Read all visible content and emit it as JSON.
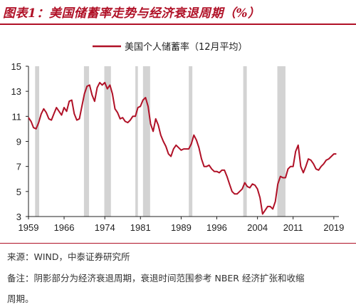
{
  "header": {
    "title": "图表1：美国储蓄率走势与经济衰退周期（%）"
  },
  "footer": {
    "source": "来源：WIND，中泰证券研究所",
    "note_line1": "备注：阴影部分为经济衰退周期，衰退时间范围参考 NBER 经济扩张和收缩",
    "note_line2": "周期。"
  },
  "colors": {
    "title": "#b01127",
    "series": "#b01127",
    "recession": "#d3d3d3"
  },
  "chart_data": {
    "type": "line",
    "title": "",
    "xlabel": "",
    "ylabel": "",
    "xlim": [
      1959,
      2020
    ],
    "ylim": [
      3,
      15
    ],
    "xticks": [
      "1959",
      "1966",
      "1974",
      "1981",
      "1989",
      "1996",
      "2004",
      "2011",
      "2019"
    ],
    "yticks": [
      "3",
      "5",
      "7",
      "9",
      "11",
      "13",
      "15"
    ],
    "legend_position": "top-center",
    "recessions": [
      [
        1960.3,
        1961.1
      ],
      [
        1969.9,
        1970.9
      ],
      [
        1973.9,
        1975.2
      ],
      [
        1980.0,
        1980.5
      ],
      [
        1981.5,
        1982.9
      ],
      [
        1990.5,
        1991.2
      ],
      [
        2001.2,
        2001.9
      ],
      [
        2007.9,
        2009.5
      ]
    ],
    "series": [
      {
        "name": "美国个人储蓄率（12月平均）",
        "x": [
          1959.0,
          1959.5,
          1960.0,
          1960.5,
          1961.0,
          1961.5,
          1962.0,
          1962.5,
          1963.0,
          1963.5,
          1964.0,
          1964.5,
          1965.0,
          1965.5,
          1966.0,
          1966.5,
          1967.0,
          1967.5,
          1968.0,
          1968.5,
          1969.0,
          1969.5,
          1970.0,
          1970.5,
          1971.0,
          1971.5,
          1972.0,
          1972.5,
          1973.0,
          1973.5,
          1974.0,
          1974.5,
          1975.0,
          1975.5,
          1976.0,
          1976.5,
          1977.0,
          1977.5,
          1978.0,
          1978.5,
          1979.0,
          1979.5,
          1980.0,
          1980.5,
          1981.0,
          1981.5,
          1982.0,
          1982.5,
          1983.0,
          1983.5,
          1984.0,
          1984.5,
          1985.0,
          1985.5,
          1986.0,
          1986.5,
          1987.0,
          1987.5,
          1988.0,
          1988.5,
          1989.0,
          1989.5,
          1990.0,
          1990.5,
          1991.0,
          1991.5,
          1992.0,
          1992.5,
          1993.0,
          1993.5,
          1994.0,
          1994.5,
          1995.0,
          1995.5,
          1996.0,
          1996.5,
          1997.0,
          1997.5,
          1998.0,
          1998.5,
          1999.0,
          1999.5,
          2000.0,
          2000.5,
          2001.0,
          2001.5,
          2002.0,
          2002.5,
          2003.0,
          2003.5,
          2004.0,
          2004.5,
          2005.0,
          2005.5,
          2006.0,
          2006.5,
          2007.0,
          2007.5,
          2008.0,
          2008.5,
          2009.0,
          2009.5,
          2010.0,
          2010.5,
          2011.0,
          2011.5,
          2012.0,
          2012.5,
          2013.0,
          2013.5,
          2014.0,
          2014.5,
          2015.0,
          2015.5,
          2016.0,
          2016.5,
          2017.0,
          2017.5,
          2018.0,
          2018.5,
          2019.0,
          2019.5
        ],
        "values": [
          10.9,
          10.6,
          10.1,
          10.0,
          10.5,
          11.2,
          11.6,
          11.3,
          10.8,
          10.7,
          11.2,
          11.7,
          11.4,
          11.1,
          11.7,
          11.4,
          12.2,
          12.3,
          11.2,
          10.7,
          10.8,
          11.8,
          12.8,
          13.4,
          13.5,
          12.7,
          12.2,
          13.3,
          13.7,
          13.5,
          13.7,
          13.2,
          13.5,
          12.8,
          11.6,
          11.3,
          10.8,
          10.9,
          10.6,
          10.5,
          10.7,
          11.0,
          11.0,
          11.7,
          11.8,
          12.3,
          12.5,
          11.8,
          10.4,
          9.8,
          10.8,
          10.3,
          9.5,
          9.0,
          8.6,
          8.0,
          7.8,
          8.4,
          8.7,
          8.5,
          8.3,
          8.4,
          8.4,
          8.4,
          8.8,
          9.5,
          9.1,
          8.5,
          7.6,
          7.0,
          7.0,
          7.1,
          6.8,
          6.6,
          6.6,
          6.5,
          6.7,
          6.7,
          6.2,
          5.6,
          5.0,
          4.8,
          4.8,
          5.0,
          5.2,
          5.7,
          5.4,
          5.3,
          5.6,
          5.5,
          5.2,
          4.5,
          3.2,
          3.5,
          3.8,
          3.8,
          3.6,
          4.2,
          5.6,
          6.2,
          6.1,
          6.1,
          6.8,
          7.0,
          7.0,
          8.2,
          8.7,
          7.0,
          6.5,
          7.0,
          7.6,
          7.5,
          7.2,
          6.8,
          6.7,
          7.0,
          7.2,
          7.5,
          7.6,
          7.8,
          8.0,
          8.0
        ]
      }
    ]
  }
}
